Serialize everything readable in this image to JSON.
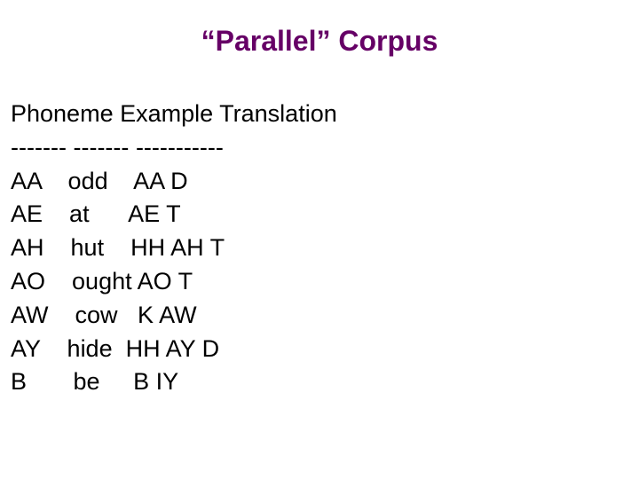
{
  "title": "“Parallel” Corpus",
  "colors": {
    "title": "#660066",
    "body": "#000000",
    "background": "#ffffff"
  },
  "typography": {
    "title_fontsize": 32,
    "title_weight": "bold",
    "body_fontsize": 27,
    "font_family": "Arial"
  },
  "header": {
    "phoneme": "Phoneme",
    "example": "Example",
    "translation": "Translation"
  },
  "separator": {
    "phoneme": "-------",
    "example": "-------",
    "translation": "-----------"
  },
  "rows": [
    {
      "phoneme": "AA",
      "example": "odd",
      "translation": "AA D"
    },
    {
      "phoneme": "AE",
      "example": "at",
      "translation": "AE T"
    },
    {
      "phoneme": "AH",
      "example": "hut",
      "translation": "HH AH T"
    },
    {
      "phoneme": "AO",
      "example": "ought",
      "translation": "AO T"
    },
    {
      "phoneme": "AW",
      "example": "cow",
      "translation": "K AW"
    },
    {
      "phoneme": "AY",
      "example": "hide",
      "translation": "HH AY D"
    },
    {
      "phoneme": "B",
      "example": "be",
      "translation": "B IY"
    }
  ]
}
